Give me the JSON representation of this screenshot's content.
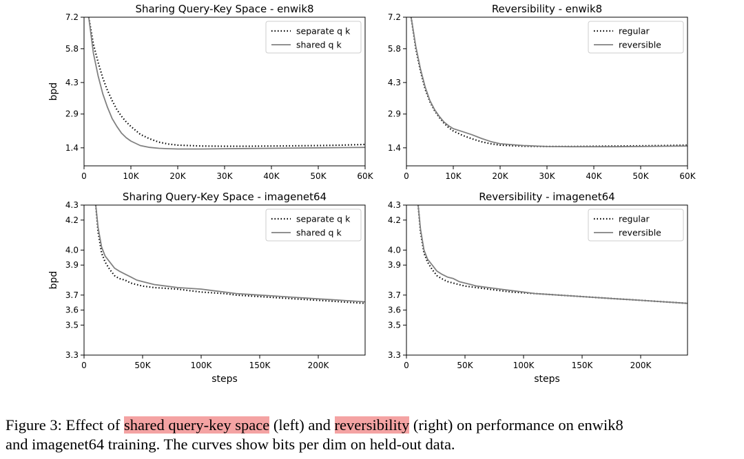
{
  "chart_data": [
    {
      "type": "line",
      "title": "Sharing Query-Key Space - enwik8",
      "xlabel": "",
      "ylabel": "bpd",
      "xlim": [
        0,
        60000
      ],
      "ylim": [
        0.6,
        7.2
      ],
      "xticks": [
        0,
        10000,
        20000,
        30000,
        40000,
        50000,
        60000
      ],
      "xtick_labels": [
        "0",
        "10K",
        "20K",
        "30K",
        "40K",
        "50K",
        "60K"
      ],
      "yticks": [
        1.4,
        2.9,
        4.3,
        5.8,
        7.2
      ],
      "ytick_labels": [
        "1.4",
        "2.9",
        "4.3",
        "5.8",
        "7.2"
      ],
      "grid": false,
      "legend": "top-right",
      "series": [
        {
          "name": "separate q k",
          "style": "dotted",
          "color": "#000000",
          "x": [
            1000,
            2000,
            3000,
            4000,
            5000,
            6000,
            7000,
            8000,
            9000,
            10000,
            12000,
            14000,
            16000,
            18000,
            20000,
            25000,
            30000,
            35000,
            40000,
            45000,
            50000,
            55000,
            60000
          ],
          "y": [
            7.2,
            6.0,
            5.2,
            4.5,
            3.95,
            3.5,
            3.1,
            2.8,
            2.55,
            2.35,
            2.0,
            1.8,
            1.65,
            1.57,
            1.52,
            1.48,
            1.47,
            1.47,
            1.48,
            1.49,
            1.5,
            1.52,
            1.55
          ]
        },
        {
          "name": "shared q k",
          "style": "solid",
          "color": "#808080",
          "x": [
            1000,
            2000,
            3000,
            4000,
            5000,
            6000,
            7000,
            8000,
            9000,
            10000,
            12000,
            14000,
            16000,
            18000,
            20000,
            25000,
            30000,
            35000,
            40000,
            45000,
            50000,
            55000,
            60000
          ],
          "y": [
            7.2,
            5.6,
            4.6,
            3.8,
            3.2,
            2.7,
            2.35,
            2.05,
            1.85,
            1.7,
            1.5,
            1.42,
            1.38,
            1.36,
            1.35,
            1.35,
            1.36,
            1.37,
            1.38,
            1.39,
            1.4,
            1.41,
            1.42
          ]
        }
      ]
    },
    {
      "type": "line",
      "title": "Reversibility - enwik8",
      "xlabel": "",
      "ylabel": "",
      "xlim": [
        0,
        60000
      ],
      "ylim": [
        0.6,
        7.2
      ],
      "xticks": [
        0,
        10000,
        20000,
        30000,
        40000,
        50000,
        60000
      ],
      "xtick_labels": [
        "0",
        "10K",
        "20K",
        "30K",
        "40K",
        "50K",
        "60K"
      ],
      "yticks": [
        1.4,
        2.9,
        4.3,
        5.8,
        7.2
      ],
      "ytick_labels": [
        "1.4",
        "2.9",
        "4.3",
        "5.8",
        "7.2"
      ],
      "grid": false,
      "legend": "top-right",
      "series": [
        {
          "name": "regular",
          "style": "dotted",
          "color": "#000000",
          "x": [
            1000,
            2000,
            3000,
            4000,
            5000,
            6000,
            7000,
            8000,
            9000,
            10000,
            12000,
            14000,
            16000,
            18000,
            20000,
            25000,
            30000,
            35000,
            40000,
            45000,
            50000,
            55000,
            60000
          ],
          "y": [
            7.2,
            5.8,
            4.8,
            4.0,
            3.45,
            3.05,
            2.75,
            2.5,
            2.3,
            2.15,
            1.95,
            1.8,
            1.67,
            1.58,
            1.52,
            1.47,
            1.46,
            1.46,
            1.47,
            1.48,
            1.49,
            1.5,
            1.52
          ]
        },
        {
          "name": "reversible",
          "style": "solid",
          "color": "#808080",
          "x": [
            1000,
            2000,
            3000,
            4000,
            5000,
            6000,
            7000,
            8000,
            9000,
            10000,
            12000,
            14000,
            16000,
            18000,
            20000,
            25000,
            30000,
            35000,
            40000,
            45000,
            50000,
            55000,
            60000
          ],
          "y": [
            7.2,
            5.9,
            4.9,
            4.1,
            3.5,
            3.1,
            2.8,
            2.55,
            2.38,
            2.25,
            2.12,
            1.98,
            1.82,
            1.68,
            1.58,
            1.5,
            1.46,
            1.45,
            1.45,
            1.45,
            1.46,
            1.47,
            1.48
          ]
        }
      ]
    },
    {
      "type": "line",
      "title": "Sharing Query-Key Space - imagenet64",
      "xlabel": "steps",
      "ylabel": "bpd",
      "xlim": [
        0,
        240000
      ],
      "ylim": [
        3.3,
        4.3
      ],
      "xticks": [
        0,
        50000,
        100000,
        150000,
        200000
      ],
      "xtick_labels": [
        "0",
        "50K",
        "100K",
        "150K",
        "200K"
      ],
      "yticks": [
        3.3,
        3.5,
        3.6,
        3.7,
        3.9,
        4.0,
        4.2,
        4.3
      ],
      "ytick_labels": [
        "3.3",
        "3.5",
        "3.6",
        "3.7",
        "3.9",
        "4.0",
        "4.2",
        "4.3"
      ],
      "grid": false,
      "legend": "top-right",
      "series": [
        {
          "name": "separate q k",
          "style": "dotted",
          "color": "#000000",
          "x": [
            10000,
            12000,
            15000,
            18000,
            22000,
            26000,
            30000,
            35000,
            40000,
            45000,
            50000,
            55000,
            60000,
            70000,
            80000,
            90000,
            100000,
            110000,
            120000,
            130000,
            140000,
            150000,
            160000,
            170000,
            180000,
            190000,
            200000,
            210000,
            220000,
            230000,
            240000
          ],
          "y": [
            4.3,
            4.12,
            3.98,
            3.92,
            3.87,
            3.83,
            3.81,
            3.8,
            3.78,
            3.77,
            3.76,
            3.755,
            3.75,
            3.745,
            3.74,
            3.73,
            3.72,
            3.715,
            3.71,
            3.7,
            3.695,
            3.69,
            3.685,
            3.68,
            3.675,
            3.67,
            3.665,
            3.66,
            3.655,
            3.65,
            3.645
          ]
        },
        {
          "name": "shared q k",
          "style": "solid",
          "color": "#808080",
          "x": [
            10000,
            12000,
            15000,
            18000,
            22000,
            26000,
            30000,
            35000,
            40000,
            45000,
            50000,
            55000,
            60000,
            70000,
            80000,
            90000,
            100000,
            110000,
            120000,
            130000,
            140000,
            150000,
            160000,
            170000,
            180000,
            190000,
            200000,
            210000,
            220000,
            230000,
            240000
          ],
          "y": [
            4.3,
            4.15,
            4.02,
            3.96,
            3.92,
            3.88,
            3.86,
            3.84,
            3.82,
            3.8,
            3.79,
            3.78,
            3.77,
            3.76,
            3.75,
            3.745,
            3.74,
            3.73,
            3.72,
            3.71,
            3.705,
            3.7,
            3.695,
            3.69,
            3.685,
            3.68,
            3.675,
            3.67,
            3.665,
            3.66,
            3.655
          ]
        }
      ]
    },
    {
      "type": "line",
      "title": "Reversibility - imagenet64",
      "xlabel": "steps",
      "ylabel": "",
      "xlim": [
        0,
        240000
      ],
      "ylim": [
        3.3,
        4.3
      ],
      "xticks": [
        0,
        50000,
        100000,
        150000,
        200000
      ],
      "xtick_labels": [
        "0",
        "50K",
        "100K",
        "150K",
        "200K"
      ],
      "yticks": [
        3.3,
        3.5,
        3.6,
        3.7,
        3.9,
        4.0,
        4.2,
        4.3
      ],
      "ytick_labels": [
        "3.3",
        "3.5",
        "3.6",
        "3.7",
        "3.9",
        "4.0",
        "4.2",
        "4.3"
      ],
      "grid": false,
      "legend": "top-right",
      "series": [
        {
          "name": "regular",
          "style": "dotted",
          "color": "#000000",
          "x": [
            10000,
            12000,
            15000,
            18000,
            22000,
            26000,
            30000,
            35000,
            40000,
            45000,
            50000,
            55000,
            60000,
            70000,
            80000,
            90000,
            100000,
            110000,
            120000,
            130000,
            140000,
            150000,
            160000,
            170000,
            180000,
            190000,
            200000,
            210000,
            220000,
            230000,
            240000
          ],
          "y": [
            4.3,
            4.12,
            3.98,
            3.92,
            3.87,
            3.83,
            3.81,
            3.79,
            3.78,
            3.77,
            3.76,
            3.755,
            3.75,
            3.74,
            3.73,
            3.72,
            3.715,
            3.71,
            3.705,
            3.7,
            3.695,
            3.69,
            3.685,
            3.68,
            3.675,
            3.67,
            3.665,
            3.66,
            3.655,
            3.65,
            3.645
          ]
        },
        {
          "name": "reversible",
          "style": "solid",
          "color": "#808080",
          "x": [
            10000,
            12000,
            15000,
            18000,
            22000,
            26000,
            30000,
            35000,
            40000,
            45000,
            50000,
            55000,
            60000,
            70000,
            80000,
            90000,
            100000,
            110000,
            120000,
            130000,
            140000,
            150000,
            160000,
            170000,
            180000,
            190000,
            200000,
            210000,
            220000,
            230000,
            240000
          ],
          "y": [
            4.3,
            4.14,
            4.0,
            3.94,
            3.9,
            3.86,
            3.84,
            3.82,
            3.81,
            3.79,
            3.78,
            3.77,
            3.76,
            3.75,
            3.74,
            3.73,
            3.72,
            3.71,
            3.705,
            3.7,
            3.695,
            3.69,
            3.685,
            3.68,
            3.675,
            3.67,
            3.665,
            3.66,
            3.655,
            3.65,
            3.645
          ]
        }
      ]
    }
  ],
  "caption": {
    "part1": "Figure 3: Effect of ",
    "highlight1": "shared query-key space",
    "part2": " (left) and ",
    "highlight2": "reversibility",
    "part3": " (right) on performance on enwik8",
    "part4": "and imagenet64 training. The curves show bits per dim on held-out data.",
    "highlight_color": "#f4a3a3"
  }
}
